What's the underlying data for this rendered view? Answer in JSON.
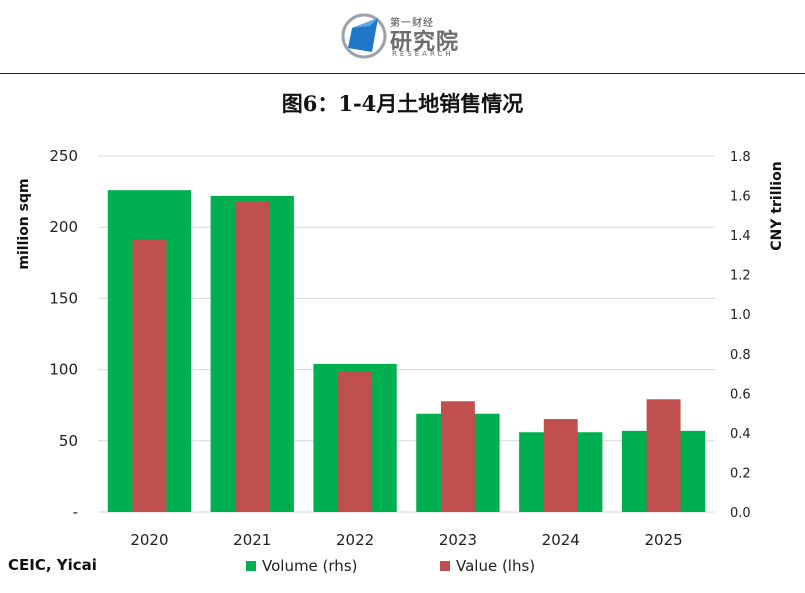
{
  "header": {
    "logo_small": "第一财经",
    "logo_main": "研究院",
    "logo_en": "RESEARCH"
  },
  "title": "图6：1-4月土地销售情况",
  "source": "CEIC, Yicai",
  "colors": {
    "volume": "#00b050",
    "value": "#c0504d",
    "grid": "#d9d9d9"
  },
  "chart_data": {
    "type": "bar",
    "categories": [
      "2020",
      "2021",
      "2022",
      "2023",
      "2024",
      "2025"
    ],
    "left_axis": {
      "label": "million sqm",
      "ticks": [
        "-",
        "50",
        "100",
        "150",
        "200",
        "250"
      ],
      "range": [
        0,
        250
      ]
    },
    "right_axis": {
      "label": "CNY trillion",
      "ticks": [
        "0.0",
        "0.2",
        "0.4",
        "0.6",
        "0.8",
        "1.0",
        "1.2",
        "1.4",
        "1.6",
        "1.8"
      ],
      "range": [
        0,
        1.8
      ]
    },
    "series": [
      {
        "name": "Volume (rhs)",
        "axis": "left",
        "values": [
          226,
          222,
          104,
          69,
          56,
          57
        ]
      },
      {
        "name": "Value (lhs)",
        "axis": "right",
        "values": [
          1.38,
          1.57,
          0.71,
          0.56,
          0.47,
          0.57
        ]
      }
    ],
    "legend": "bottom"
  }
}
